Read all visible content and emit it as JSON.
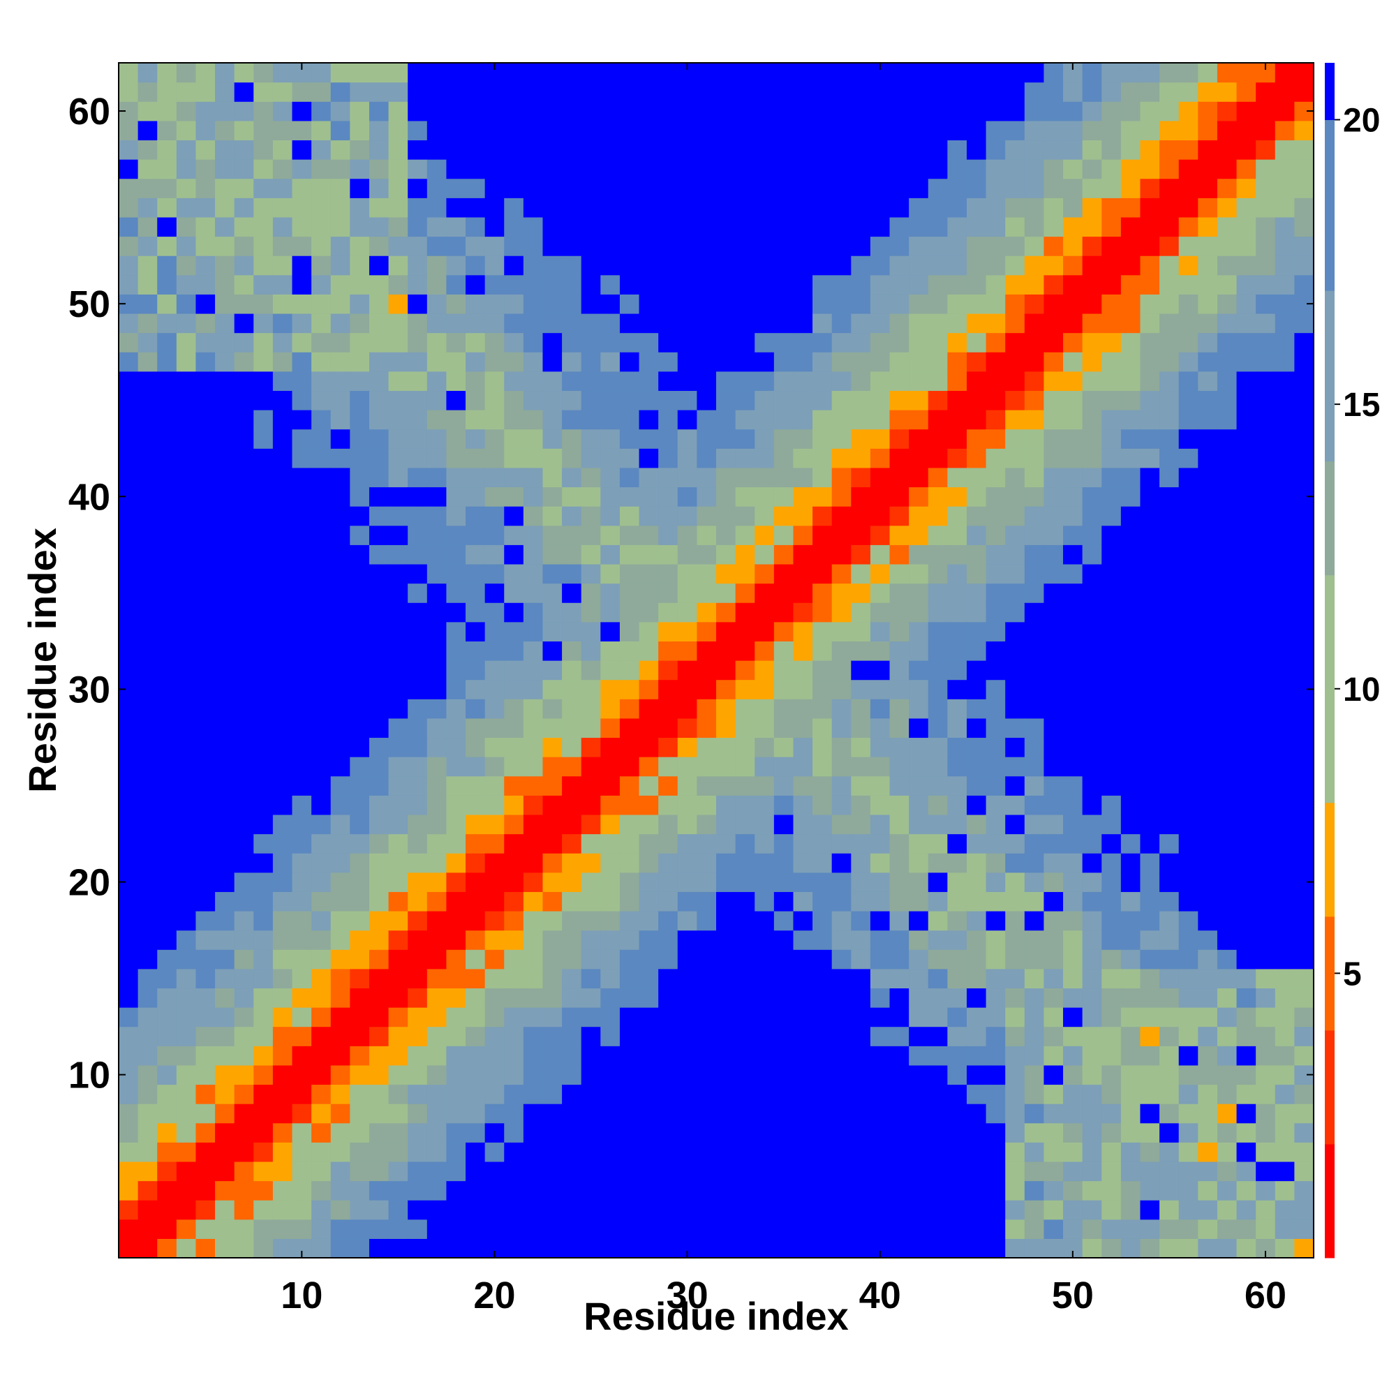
{
  "chart_data": {
    "type": "heatmap",
    "title": "",
    "xlabel": "Residue index",
    "ylabel": "Residue index",
    "x_range": [
      1,
      62
    ],
    "y_range": [
      1,
      62
    ],
    "xticks": [
      10,
      20,
      30,
      40,
      50,
      60
    ],
    "yticks": [
      10,
      20,
      30,
      40,
      50,
      60
    ],
    "colorbar": {
      "ticks": [
        5,
        10,
        15,
        20
      ],
      "range": [
        0,
        21
      ],
      "colors": {
        "lt2": "#ff0000",
        "lt4": "#ff3300",
        "lt6": "#ff6600",
        "lt8": "#ffa500",
        "lt12": "#9fbf8f",
        "lt14": "#8faa9a",
        "lt17": "#7d9fb8",
        "lt20": "#5b88c0",
        "gte20": "#0000ff"
      }
    },
    "description_model": {
      "n_residues": 62,
      "diagonal_band": "distance increases away from main diagonal; red within |i-j|<=2, orange 3-5, green 6-13, steel-blue 14-20",
      "anti_diagonal_band": "second band along i+j≈64 (green/orange/blue), forming X shape",
      "blue_regions": "distance >= 20 outside both bands"
    }
  }
}
